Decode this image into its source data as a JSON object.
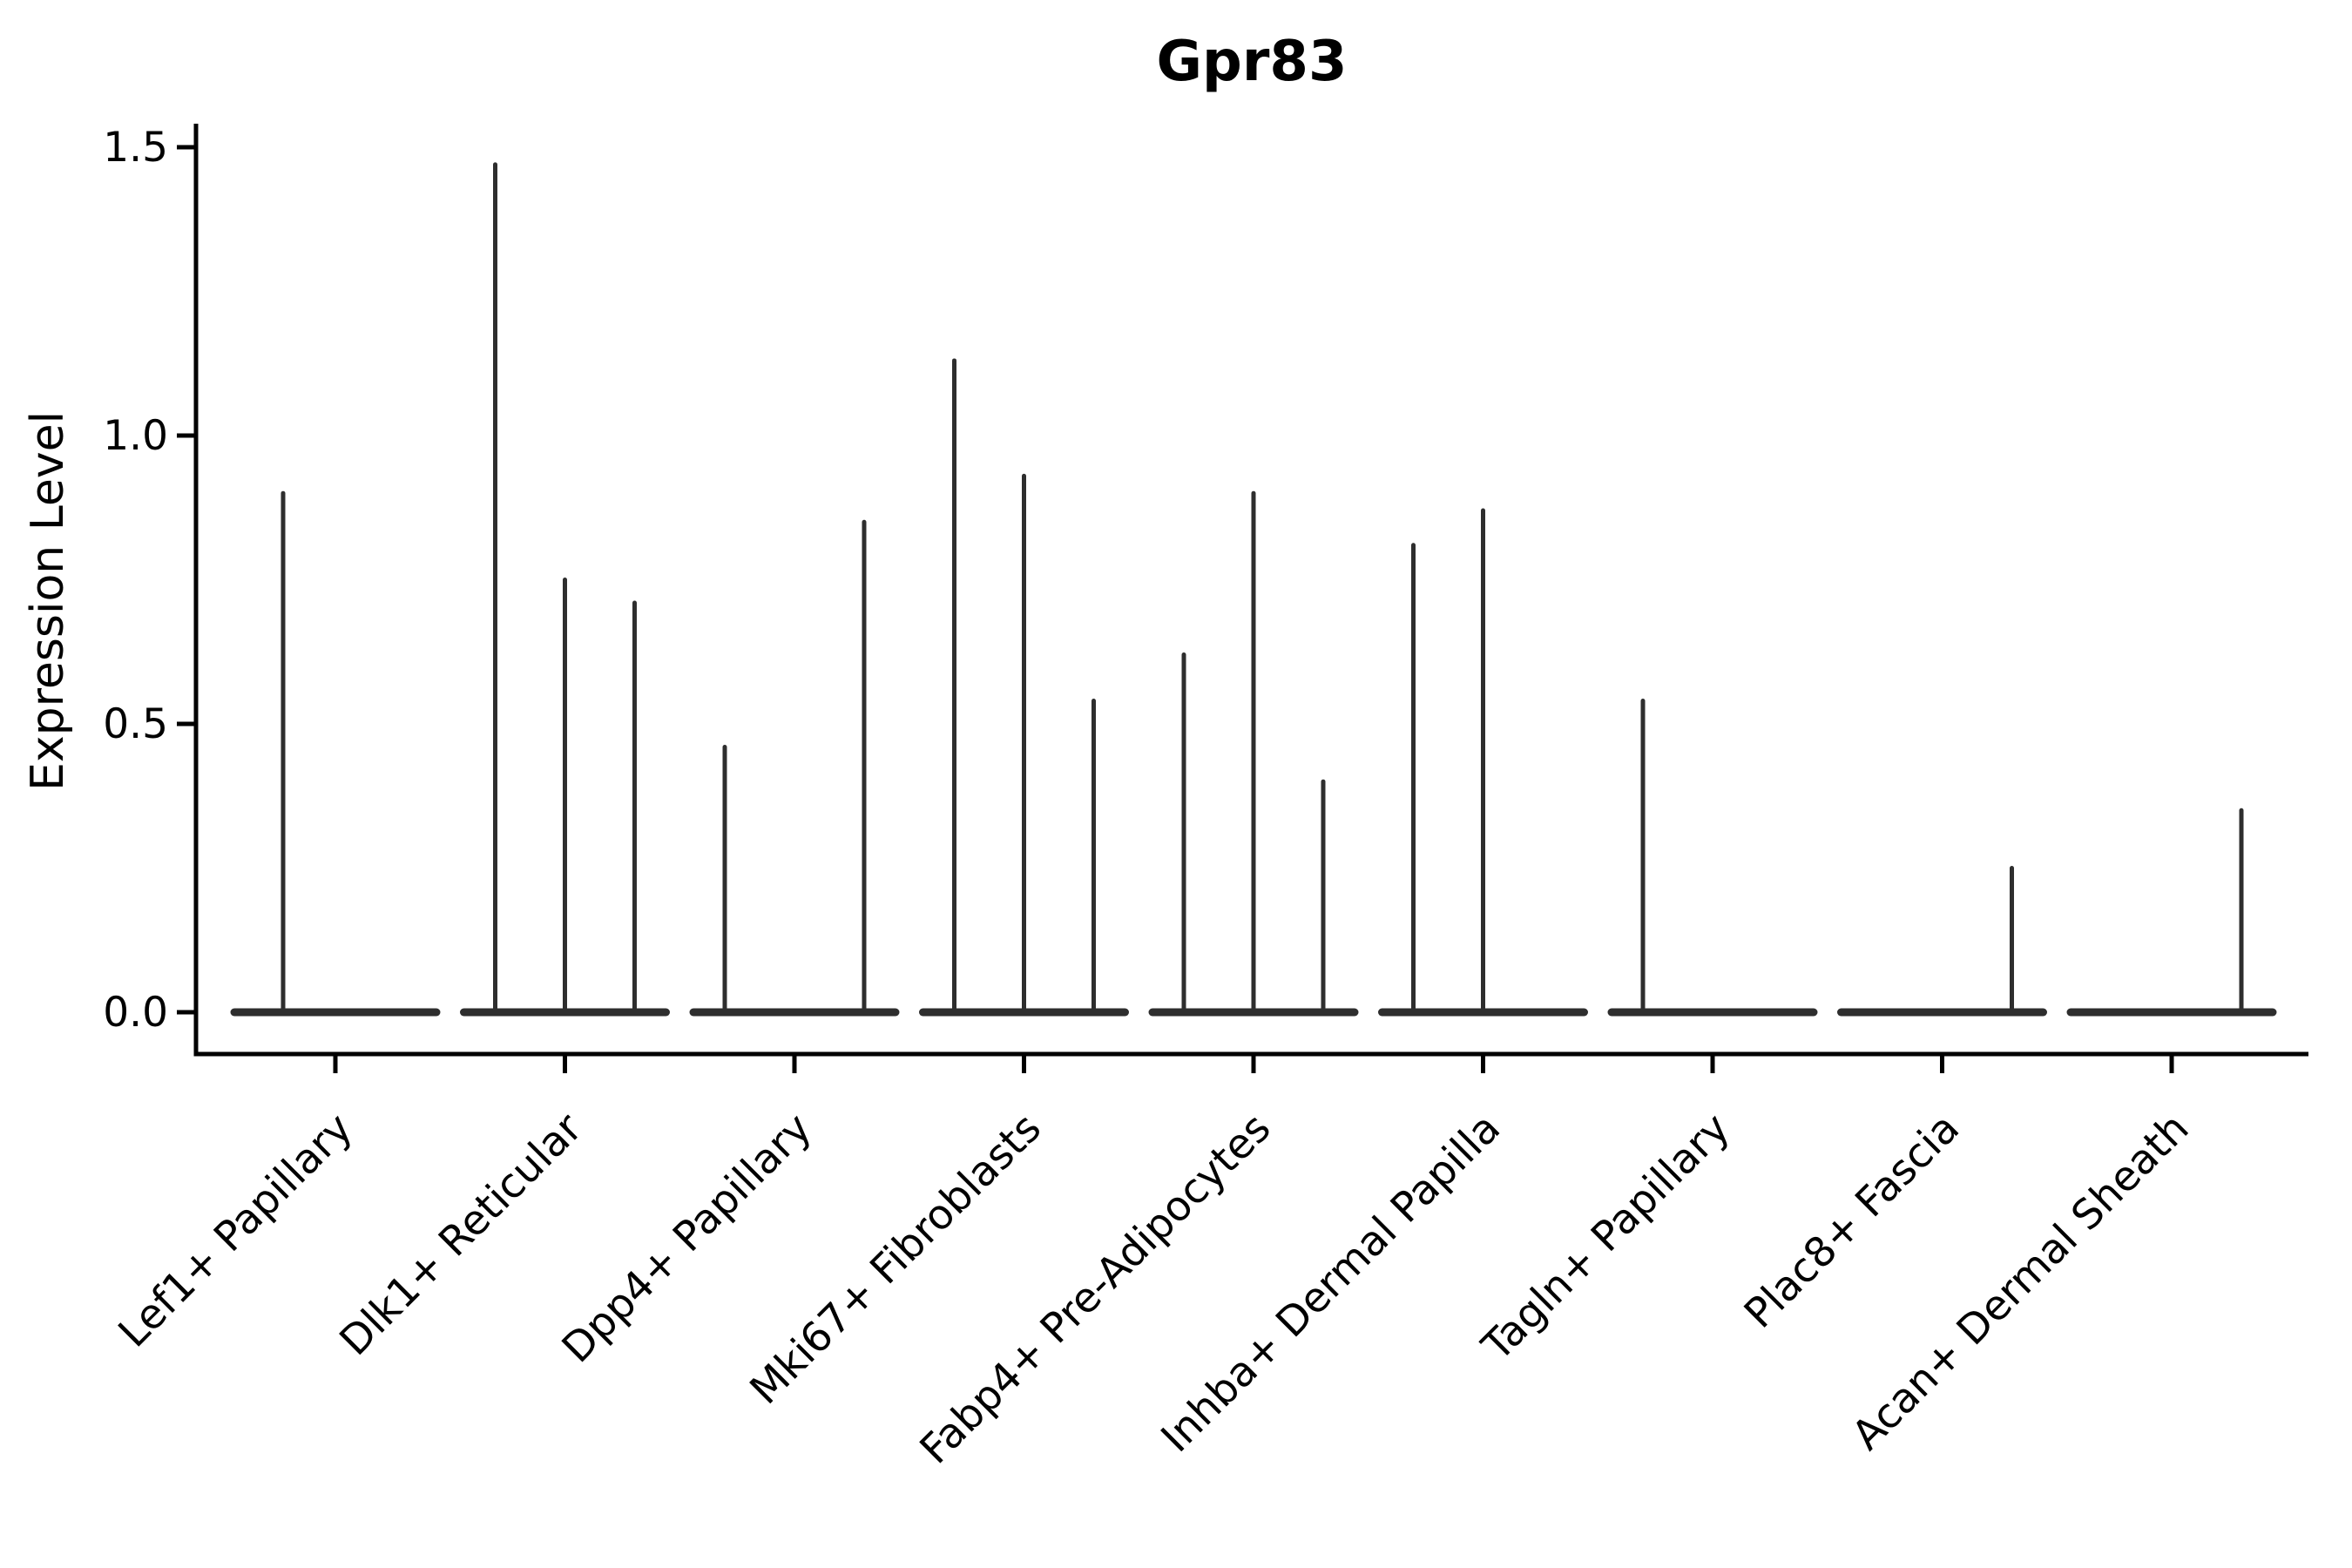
{
  "title": "Gpr83",
  "y_axis": {
    "label": "Expression Level",
    "tick_labels": [
      "0.0",
      "0.5",
      "1.0",
      "1.5"
    ]
  },
  "colors": {
    "violin": "#2e2e2e",
    "axis": "#000000",
    "background": "#ffffff"
  },
  "chart_data": {
    "type": "violin",
    "title": "Gpr83",
    "xlabel": "",
    "ylabel": "Expression Level",
    "ylim": [
      -0.07,
      1.54
    ],
    "yticks": [
      0.0,
      0.5,
      1.0,
      1.5
    ],
    "grid": false,
    "legend": "none",
    "x_tick_rotation_deg": 45,
    "categories": [
      "Lef1+ Papillary",
      "Dlk1+ Reticular",
      "Dpp4+ Papillary",
      "Mki67+ Fibroblasts",
      "Fabp4+ Pre-Adipocytes",
      "Inhba+ Dermal Papilla",
      "Tagln+ Papillary",
      "Plac8+ Fascia",
      "Acan+ Dermal Sheath"
    ],
    "groups": [
      {
        "category": "Lef1+ Papillary",
        "violin_maxima": [
          0.9,
          0.0
        ]
      },
      {
        "category": "Dlk1+ Reticular",
        "violin_maxima": [
          1.47,
          0.75,
          0.71
        ]
      },
      {
        "category": "Dpp4+ Papillary",
        "violin_maxima": [
          0.46,
          0.0,
          0.85
        ]
      },
      {
        "category": "Mki67+ Fibroblasts",
        "violin_maxima": [
          1.13,
          0.93,
          0.54
        ]
      },
      {
        "category": "Fabp4+ Pre-Adipocytes",
        "violin_maxima": [
          0.62,
          0.9,
          0.4
        ]
      },
      {
        "category": "Inhba+ Dermal Papilla",
        "violin_maxima": [
          0.81,
          0.87,
          0.0
        ]
      },
      {
        "category": "Tagln+ Papillary",
        "violin_maxima": [
          0.54,
          0.0,
          0.0
        ]
      },
      {
        "category": "Plac8+ Fascia",
        "violin_maxima": [
          0.0,
          0.0,
          0.25
        ]
      },
      {
        "category": "Acan+ Dermal Sheath",
        "violin_maxima": [
          0.0,
          0.0,
          0.35
        ]
      }
    ],
    "description": "Each category shows thin violins flat at 0 with narrow spikes up to the listed maximum expression value; violins with maximum 0.0 are flat baselines only."
  }
}
